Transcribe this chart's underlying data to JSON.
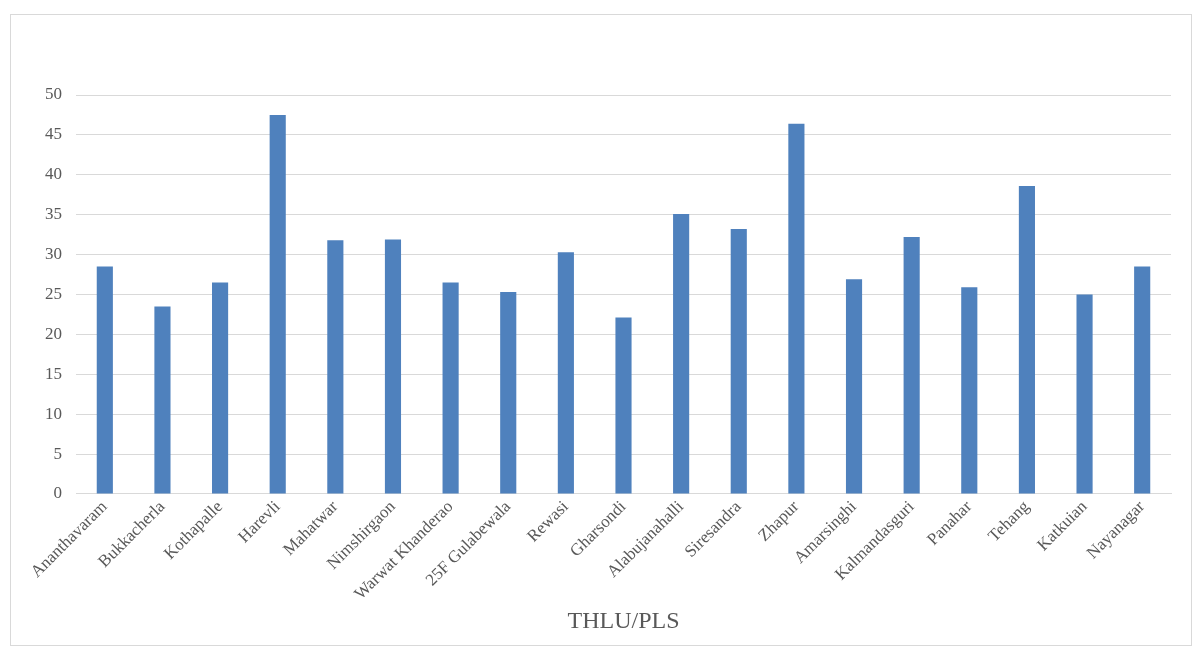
{
  "chart_data": {
    "type": "bar",
    "xlabel": "THLU/PLS",
    "categories": [
      "Ananthavaram",
      "Bukkacherla",
      "Kothapalle",
      "Harevli",
      "Mahatwar",
      "Nimshirgaon",
      "Warwat Khanderao",
      "25F Gulabewala",
      "Rewasi",
      "Gharsondi",
      "Alabujanahalli",
      "Siresandra",
      "Zhapur",
      "Amarsinghi",
      "Kalmandasguri",
      "Panahar",
      "Tehang",
      "Katkuian",
      "Nayanagar"
    ],
    "values": [
      28.5,
      23.5,
      26.5,
      47.5,
      31.8,
      31.9,
      26.5,
      25.3,
      30.3,
      22.1,
      35.1,
      33.2,
      46.4,
      26.9,
      32.2,
      25.9,
      38.6,
      25.0,
      28.5
    ],
    "color": "#4f81bd",
    "ylim": [
      0,
      50
    ],
    "yticks": [
      0,
      5,
      10,
      15,
      20,
      25,
      30,
      35,
      40,
      45,
      50
    ],
    "grid": "y",
    "legend": false
  }
}
